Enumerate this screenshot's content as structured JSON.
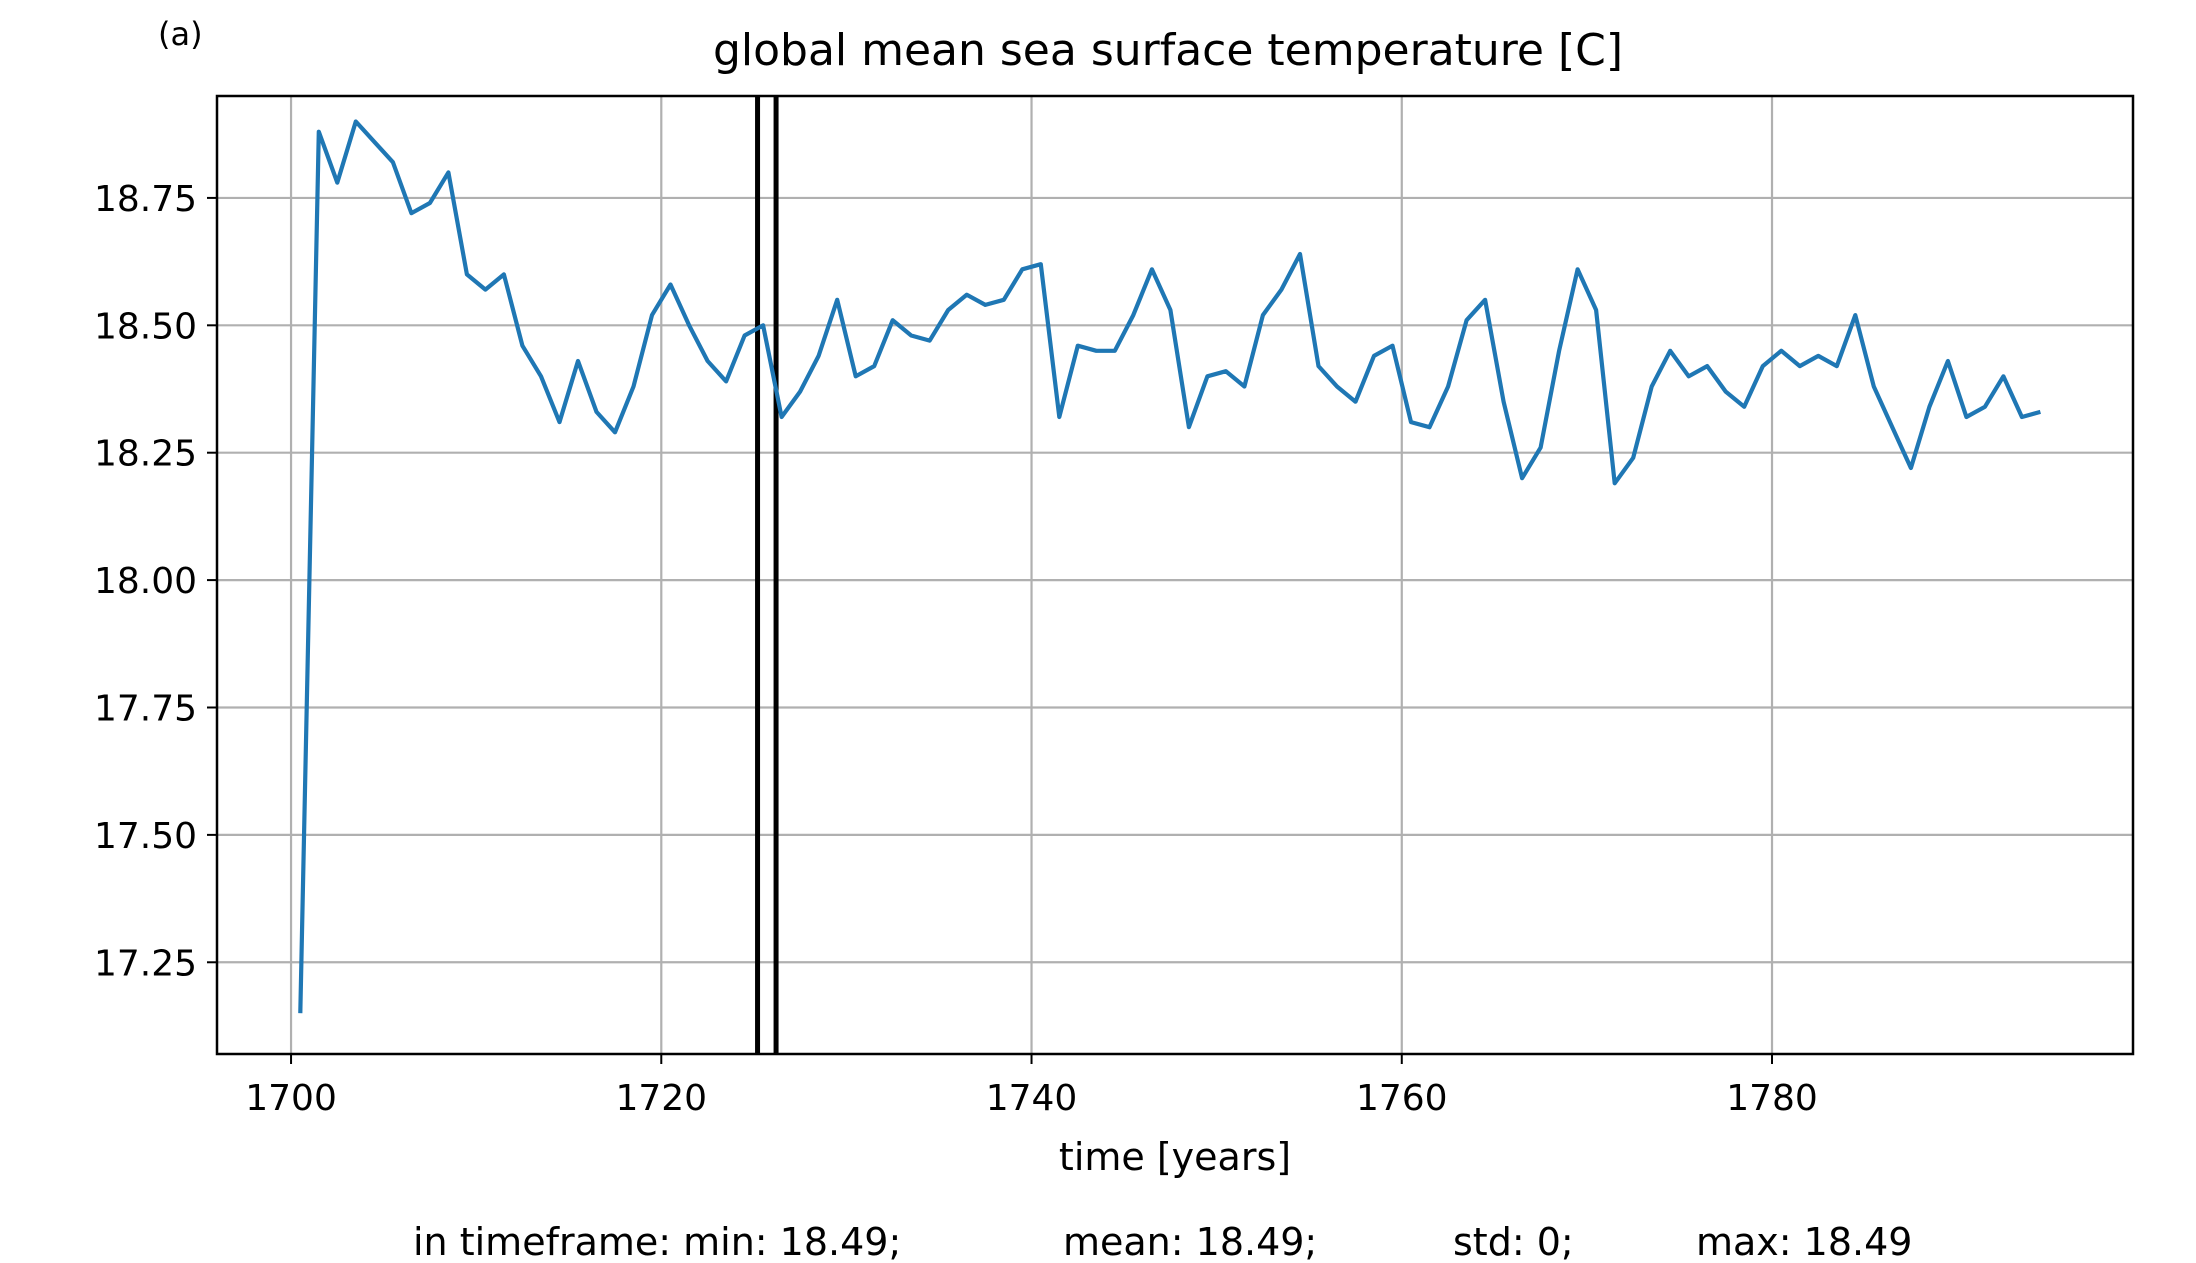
{
  "panel_label": "(a)",
  "chart_data": {
    "type": "line",
    "title": "global mean sea surface temperature [C]",
    "xlabel": "time [years]",
    "ylabel": "",
    "xlim": [
      1696.0,
      1799.5
    ],
    "ylim": [
      17.07,
      18.95
    ],
    "xticks": [
      1700,
      1720,
      1740,
      1760,
      1780
    ],
    "yticks": [
      17.25,
      17.5,
      17.75,
      18.0,
      18.25,
      18.5,
      18.75
    ],
    "ytick_labels": [
      "17.25",
      "17.50",
      "17.75",
      "18.00",
      "18.25",
      "18.50",
      "18.75"
    ],
    "grid": true,
    "line_color": "#1f77b4",
    "marker_color": "#000000",
    "timeframe_markers": [
      1725.2,
      1726.2
    ],
    "series": [
      {
        "x": [
          1700.5,
          1701.5,
          1702.5,
          1703.5,
          1704.5,
          1705.5,
          1706.5,
          1707.5,
          1708.5,
          1709.5,
          1710.5,
          1711.5,
          1712.5,
          1713.5,
          1714.5,
          1715.5,
          1716.5,
          1717.5,
          1718.5,
          1719.5,
          1720.5,
          1721.5,
          1722.5,
          1723.5,
          1724.5,
          1725.5,
          1726.5,
          1727.5,
          1728.5,
          1729.5,
          1730.5,
          1731.5,
          1732.5,
          1733.5,
          1734.5,
          1735.5,
          1736.5,
          1737.5,
          1738.5,
          1739.5,
          1740.5,
          1741.5,
          1742.5,
          1743.5,
          1744.5,
          1745.5,
          1746.5,
          1747.5,
          1748.5,
          1749.5,
          1750.5,
          1751.5,
          1752.5,
          1753.5,
          1754.5,
          1755.5,
          1756.5,
          1757.5,
          1758.5,
          1759.5,
          1760.5,
          1761.5,
          1762.5,
          1763.5,
          1764.5,
          1765.5,
          1766.5,
          1767.5,
          1768.5,
          1769.5,
          1770.5,
          1771.5,
          1772.5,
          1773.5,
          1774.5,
          1775.5,
          1776.5,
          1777.5,
          1778.5,
          1779.5,
          1780.5,
          1781.5,
          1782.5,
          1783.5,
          1784.5,
          1785.5,
          1786.5,
          1787.5,
          1788.5,
          1789.5,
          1790.5,
          1791.5,
          1792.5,
          1793.5,
          1794.5
        ],
        "values": [
          17.15,
          18.88,
          18.78,
          18.9,
          18.86,
          18.82,
          18.72,
          18.74,
          18.8,
          18.6,
          18.57,
          18.6,
          18.46,
          18.4,
          18.31,
          18.43,
          18.33,
          18.29,
          18.38,
          18.52,
          18.58,
          18.5,
          18.43,
          18.39,
          18.48,
          18.5,
          18.32,
          18.37,
          18.44,
          18.55,
          18.4,
          18.42,
          18.51,
          18.48,
          18.47,
          18.53,
          18.56,
          18.54,
          18.55,
          18.61,
          18.62,
          18.32,
          18.46,
          18.45,
          18.45,
          18.52,
          18.61,
          18.53,
          18.3,
          18.4,
          18.41,
          18.38,
          18.52,
          18.57,
          18.64,
          18.42,
          18.38,
          18.35,
          18.44,
          18.46,
          18.31,
          18.3,
          18.38,
          18.51,
          18.55,
          18.35,
          18.2,
          18.26,
          18.45,
          18.61,
          18.53,
          18.19,
          18.24,
          18.38,
          18.45,
          18.4,
          18.42,
          18.37,
          18.34,
          18.42,
          18.45,
          18.42,
          18.44,
          18.42,
          18.52,
          18.38,
          18.3,
          18.22,
          18.34,
          18.43,
          18.32,
          18.34,
          18.4,
          18.32,
          18.33
        ]
      }
    ]
  },
  "stats": {
    "min": "in timeframe: min: 18.49;",
    "mean": "mean: 18.49;",
    "std": "std: 0;",
    "max": "max: 18.49"
  }
}
